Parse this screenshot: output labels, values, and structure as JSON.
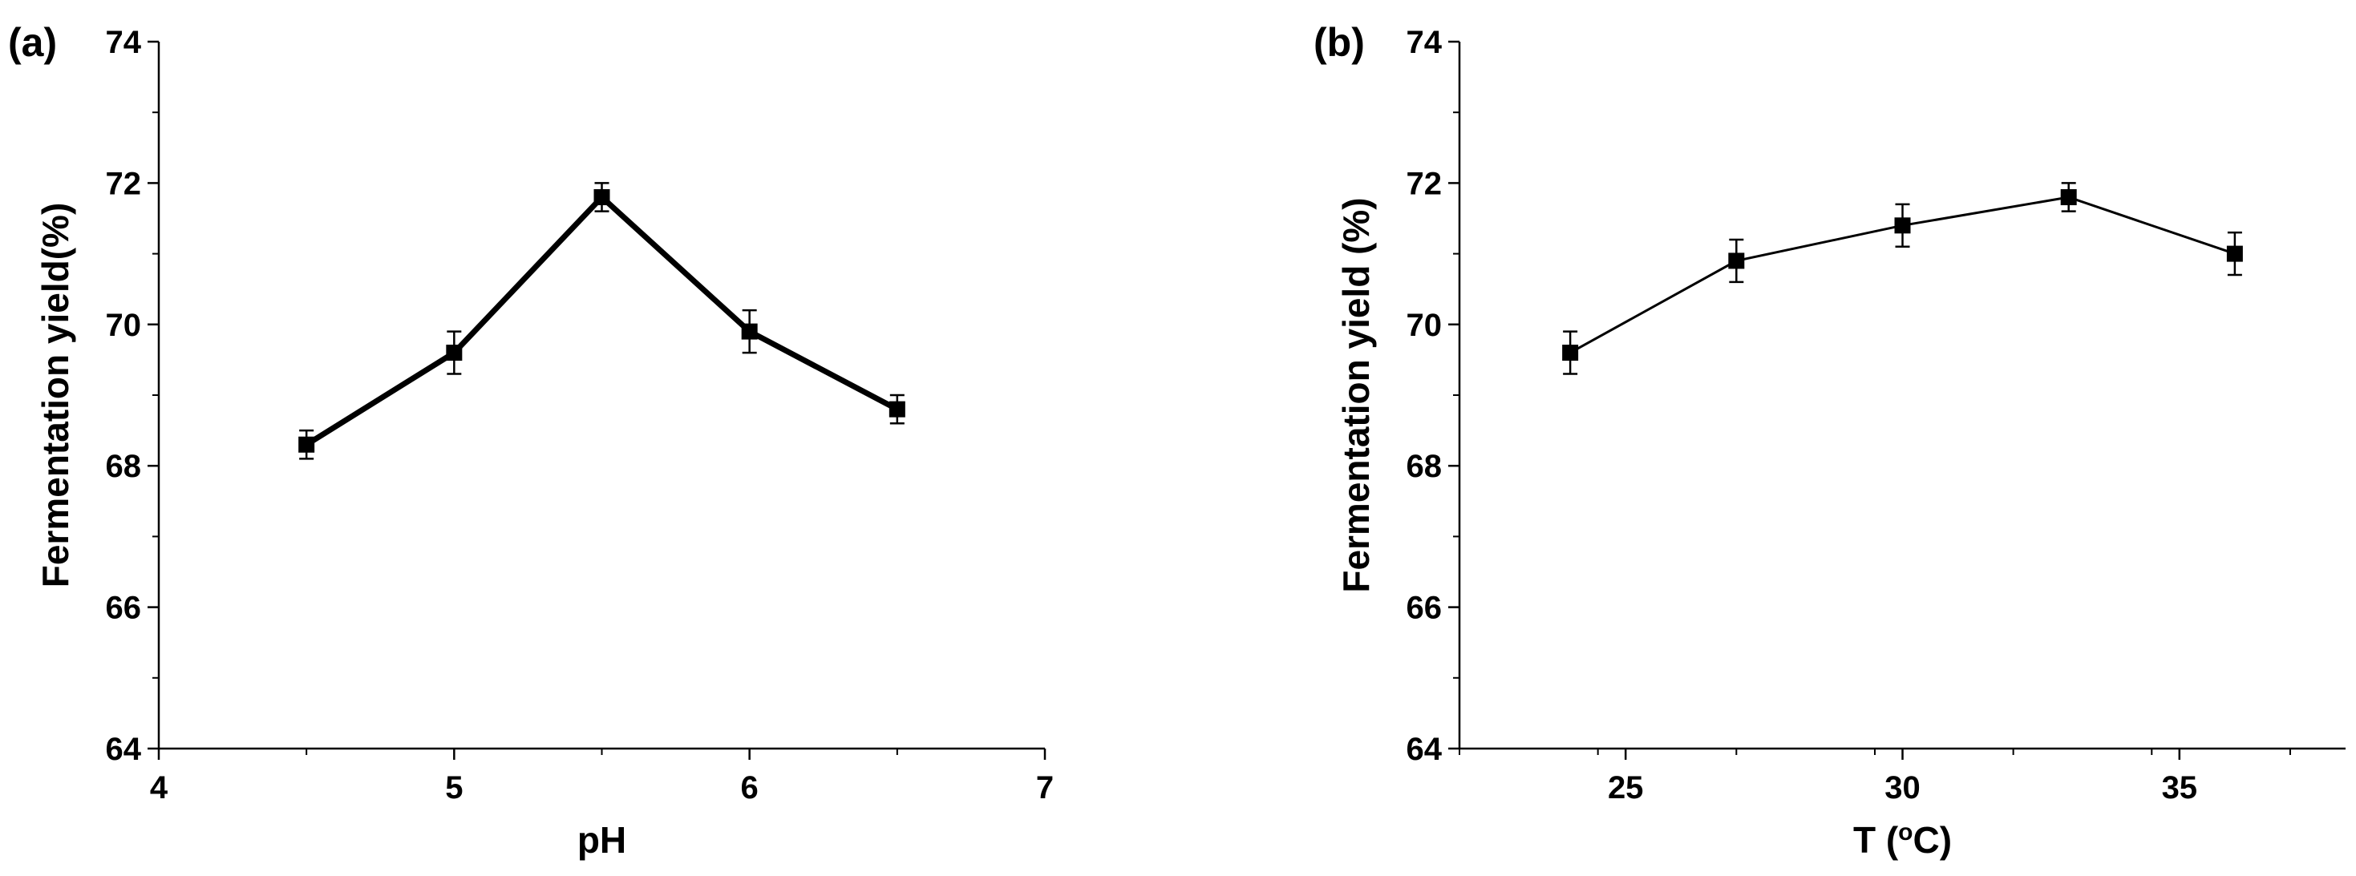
{
  "chart_data": [
    {
      "type": "line",
      "panel_label": "(a)",
      "xlabel": "pH",
      "ylabel": "Fermentation yield(%)",
      "xlim": [
        4,
        7
      ],
      "ylim": [
        64,
        74
      ],
      "x_ticks": [
        4,
        5,
        6,
        7
      ],
      "y_ticks": [
        64,
        66,
        68,
        70,
        72,
        74
      ],
      "line_style": "thick",
      "marker": "square",
      "grid": false,
      "series": [
        {
          "x": [
            4.5,
            5.0,
            5.5,
            6.0,
            6.5
          ],
          "y": [
            68.3,
            69.6,
            71.8,
            69.9,
            68.8
          ],
          "error": [
            0.2,
            0.3,
            0.2,
            0.3,
            0.2
          ]
        }
      ]
    },
    {
      "type": "line",
      "panel_label": "(b)",
      "xlabel": "T (oC)",
      "xlabel_parts": {
        "before": "T (",
        "sup": "o",
        "after": "C)"
      },
      "ylabel": "Fermentation yield (%)",
      "xlim": [
        22,
        38
      ],
      "ylim": [
        64,
        74
      ],
      "x_ticks": [
        25,
        30,
        35
      ],
      "y_ticks": [
        64,
        66,
        68,
        70,
        72,
        74
      ],
      "line_style": "thin",
      "marker": "square",
      "grid": false,
      "series": [
        {
          "x": [
            24,
            27,
            30,
            33,
            36
          ],
          "y": [
            69.6,
            70.9,
            71.4,
            71.8,
            71.0
          ],
          "error": [
            0.3,
            0.3,
            0.3,
            0.2,
            0.3
          ]
        }
      ]
    }
  ]
}
